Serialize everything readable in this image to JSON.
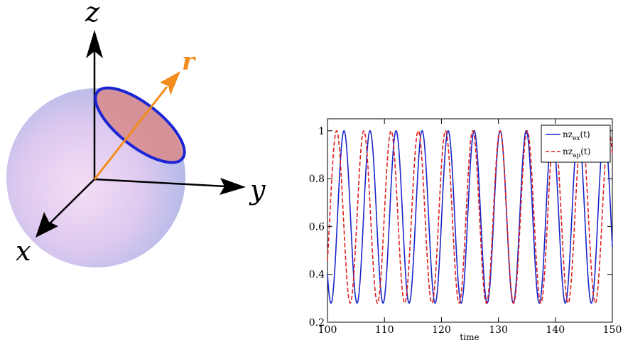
{
  "diagram": {
    "axes": {
      "x_label": "x",
      "y_label": "y",
      "z_label": "z",
      "r_label": "r"
    },
    "colors": {
      "sphere_fill": "#dcc8f0",
      "cap_fill": "#d98a8a",
      "cap_ring": "#1a25d6",
      "r_arrow": "#f28c1b",
      "axis": "#000000"
    }
  },
  "chart_data": {
    "type": "line",
    "xlabel": "time",
    "ylabel": "",
    "xlim": [
      100,
      150
    ],
    "ylim": [
      0.2,
      1.05
    ],
    "xticks": [
      "100",
      "110",
      "120",
      "130",
      "140",
      "150"
    ],
    "yticks": [
      "0.2",
      "0.4",
      "0.6",
      "0.8",
      "1"
    ],
    "legend_position": "top-right",
    "grid": false,
    "series": [
      {
        "name_main": "nz",
        "name_sub": "ex",
        "name_tail": "(t)",
        "color": "#1a25c8",
        "style": "solid",
        "min": 0.28,
        "max": 1.0,
        "period": 4.57,
        "first_peak": 102.9
      },
      {
        "name_main": "nz",
        "name_sub": "ap",
        "name_tail": "(t)",
        "color": "#e01e1e",
        "style": "dashed",
        "min": 0.28,
        "max": 1.0,
        "period": 4.78,
        "first_peak": 101.6
      }
    ]
  }
}
